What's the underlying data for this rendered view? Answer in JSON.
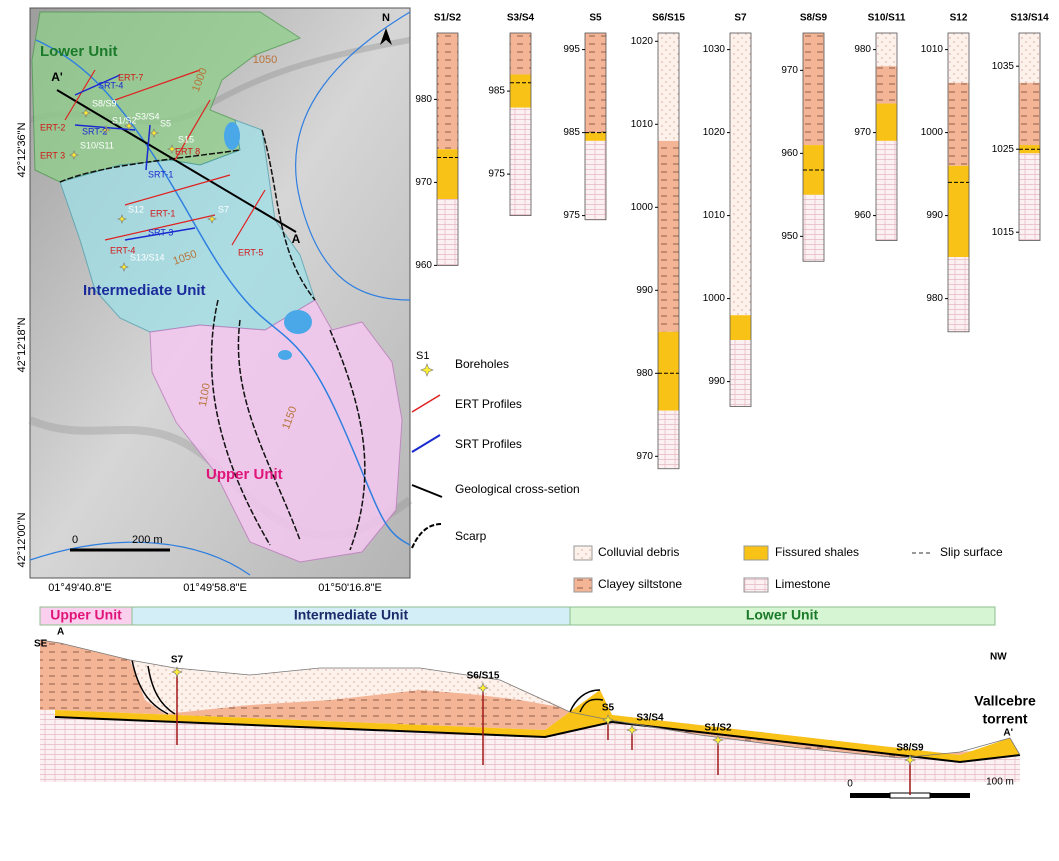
{
  "map": {
    "north": "N",
    "units": [
      "Lower Unit",
      "Intermediate Unit",
      "Upper Unit"
    ],
    "section_ends": [
      "A'",
      "A"
    ],
    "boreholes": [
      "S8/S9",
      "S1/S2",
      "S3/S4",
      "S5",
      "S10/S11",
      "S15",
      "S12",
      "S7",
      "S13/S14"
    ],
    "ert_profiles": [
      "ERT-7",
      "ERT-2",
      "ERT 3",
      "ERT 8",
      "ERT-1",
      "ERT-4",
      "ERT-5"
    ],
    "srt_profiles": [
      "SRT-4",
      "SRT-2",
      "SRT-1",
      "SRT-3"
    ],
    "contours": [
      1000,
      1050,
      1050,
      1100,
      1150
    ],
    "latitudes": [
      "42°12'36\"N",
      "42°12'18\"N",
      "42°12'00\"N"
    ],
    "longitudes": [
      "01°49'40.8\"E",
      "01°49'58.8\"E",
      "01°50'16.8\"E"
    ],
    "scale": [
      "0",
      "200 m"
    ]
  },
  "map_legend": {
    "marker": "S1",
    "items": [
      "Boreholes",
      "ERT Profiles",
      "SRT Profiles",
      "Geological cross-setion",
      "Scarp"
    ]
  },
  "logs": [
    {
      "name": "S1/S2",
      "ylim": [
        960,
        988
      ],
      "ticks": [
        960,
        970,
        980
      ],
      "slip": [
        973
      ],
      "layers": [
        {
          "lithology": "Clayey siltstone",
          "top": 988,
          "bottom": 974
        },
        {
          "lithology": "Fissured shales",
          "top": 974,
          "bottom": 968
        },
        {
          "lithology": "Limestone",
          "top": 968,
          "bottom": 960
        }
      ]
    },
    {
      "name": "S3/S4",
      "ylim": [
        970,
        992
      ],
      "ticks": [
        975,
        985
      ],
      "slip": [
        986
      ],
      "layers": [
        {
          "lithology": "Clayey siltstone",
          "top": 992,
          "bottom": 987
        },
        {
          "lithology": "Fissured shales",
          "top": 987,
          "bottom": 983
        },
        {
          "lithology": "Limestone",
          "top": 983,
          "bottom": 970
        }
      ]
    },
    {
      "name": "S5",
      "ylim": [
        974.5,
        997
      ],
      "ticks": [
        975,
        985,
        995
      ],
      "slip": [
        985
      ],
      "layers": [
        {
          "lithology": "Clayey siltstone",
          "top": 997,
          "bottom": 985
        },
        {
          "lithology": "Fissured shales",
          "top": 985,
          "bottom": 984
        },
        {
          "lithology": "Limestone",
          "top": 984,
          "bottom": 974.5
        }
      ]
    },
    {
      "name": "S6/S15",
      "ylim": [
        968.5,
        1021
      ],
      "ticks": [
        970,
        980,
        990,
        1000,
        1010,
        1020
      ],
      "slip": [
        980
      ],
      "layers": [
        {
          "lithology": "Colluvial debris",
          "top": 1021,
          "bottom": 1008
        },
        {
          "lithology": "Clayey siltstone",
          "top": 1008,
          "bottom": 985
        },
        {
          "lithology": "Fissured shales",
          "top": 985,
          "bottom": 975.5
        },
        {
          "lithology": "Limestone",
          "top": 975.5,
          "bottom": 968.5
        }
      ]
    },
    {
      "name": "S7",
      "ylim": [
        987,
        1032
      ],
      "ticks": [
        990,
        1000,
        1010,
        1020,
        1030
      ],
      "slip": [],
      "layers": [
        {
          "lithology": "Colluvial debris",
          "top": 1032,
          "bottom": 998
        },
        {
          "lithology": "Fissured shales",
          "top": 998,
          "bottom": 995
        },
        {
          "lithology": "Limestone",
          "top": 995,
          "bottom": 987
        }
      ]
    },
    {
      "name": "S8/S9",
      "ylim": [
        947,
        974.5
      ],
      "ticks": [
        950,
        960,
        970
      ],
      "slip": [
        958
      ],
      "layers": [
        {
          "lithology": "Clayey siltstone",
          "top": 974.5,
          "bottom": 961
        },
        {
          "lithology": "Fissured shales",
          "top": 961,
          "bottom": 955
        },
        {
          "lithology": "Limestone",
          "top": 955,
          "bottom": 947
        }
      ]
    },
    {
      "name": "S10/S11",
      "ylim": [
        957,
        982
      ],
      "ticks": [
        960,
        970,
        980
      ],
      "slip": [],
      "layers": [
        {
          "lithology": "Colluvial debris",
          "top": 982,
          "bottom": 978
        },
        {
          "lithology": "Clayey siltstone",
          "top": 978,
          "bottom": 973.5
        },
        {
          "lithology": "Fissured shales",
          "top": 973.5,
          "bottom": 969
        },
        {
          "lithology": "Limestone",
          "top": 969,
          "bottom": 957
        }
      ]
    },
    {
      "name": "S12",
      "ylim": [
        976,
        1012
      ],
      "ticks": [
        980,
        990,
        1000,
        1010
      ],
      "slip": [
        994
      ],
      "layers": [
        {
          "lithology": "Colluvial debris",
          "top": 1012,
          "bottom": 1006
        },
        {
          "lithology": "Clayey siltstone",
          "top": 1006,
          "bottom": 996
        },
        {
          "lithology": "Fissured shales",
          "top": 996,
          "bottom": 985
        },
        {
          "lithology": "Limestone",
          "top": 985,
          "bottom": 976
        }
      ]
    },
    {
      "name": "S13/S14",
      "ylim": [
        1014,
        1039
      ],
      "ticks": [
        1015,
        1025,
        1035
      ],
      "slip": [
        1025
      ],
      "layers": [
        {
          "lithology": "Colluvial debris",
          "top": 1039,
          "bottom": 1033
        },
        {
          "lithology": "Clayey siltstone",
          "top": 1033,
          "bottom": 1025.5
        },
        {
          "lithology": "Fissured shales",
          "top": 1025.5,
          "bottom": 1024.5
        },
        {
          "lithology": "Limestone",
          "top": 1024.5,
          "bottom": 1014
        }
      ]
    }
  ],
  "lithology_legend": [
    "Colluvial debris",
    "Clayey siltstone",
    "Fissured shales",
    "Limestone",
    "Slip surface"
  ],
  "cross_section": {
    "units": [
      "Upper Unit",
      "Intermediate Unit",
      "Lower Unit"
    ],
    "ends": [
      "SE",
      "A",
      "NW",
      "A'"
    ],
    "boreholes": [
      "S7",
      "S6/S15",
      "S5",
      "S3/S4",
      "S1/S2",
      "S8/S9"
    ],
    "river": [
      "Vallcebre",
      "torrent"
    ],
    "scale": [
      "0",
      "100 m"
    ]
  }
}
